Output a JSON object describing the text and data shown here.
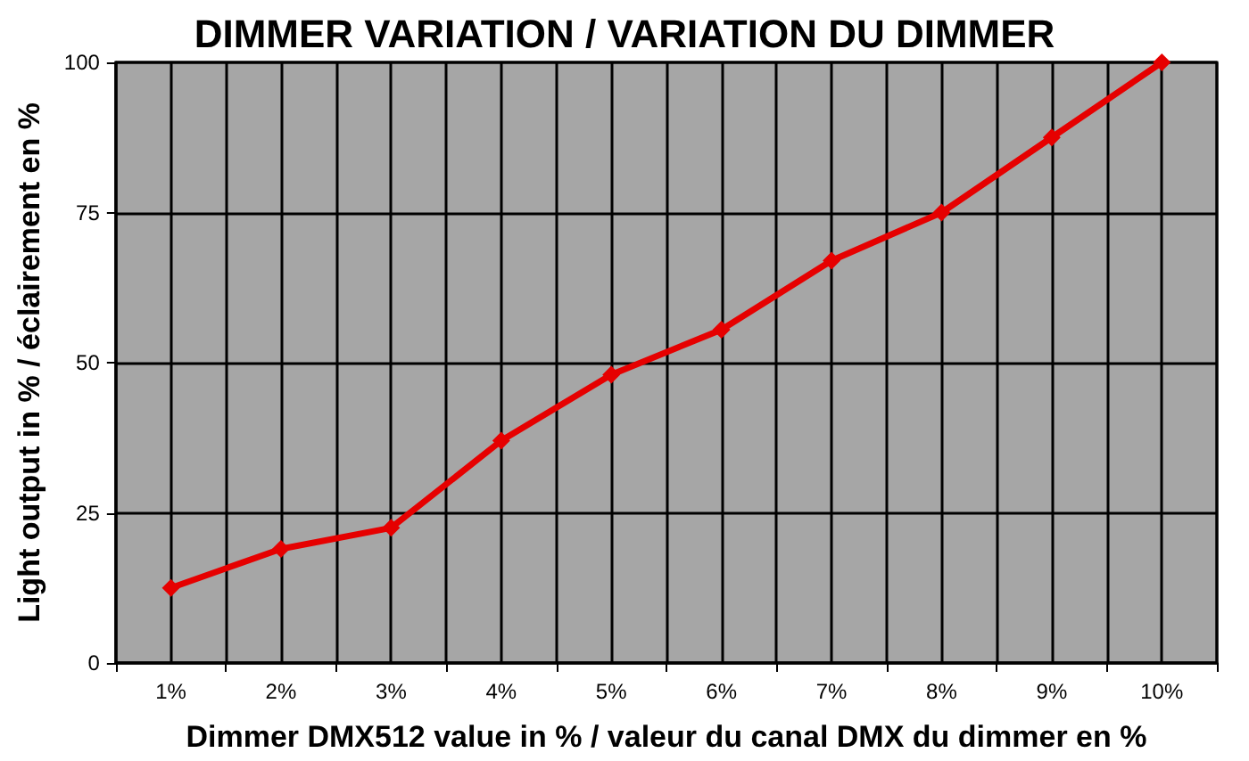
{
  "chart_data": {
    "type": "line",
    "title": "DIMMER VARIATION / VARIATION DU DIMMER",
    "xlabel": "Dimmer DMX512 value in % / valeur du canal DMX du dimmer en %",
    "ylabel": "Light output in % / éclairement en %",
    "categories": [
      "1%",
      "2%",
      "3%",
      "4%",
      "5%",
      "6%",
      "7%",
      "8%",
      "9%",
      "10%"
    ],
    "values": [
      12.5,
      19,
      22.5,
      37,
      48,
      55.5,
      67,
      75,
      87.5,
      100
    ],
    "color": "#e60000",
    "ylim": [
      0,
      100
    ],
    "yticks": [
      0,
      25,
      50,
      75,
      100
    ],
    "grid": true,
    "marker": "diamond",
    "line_style": "solid"
  }
}
